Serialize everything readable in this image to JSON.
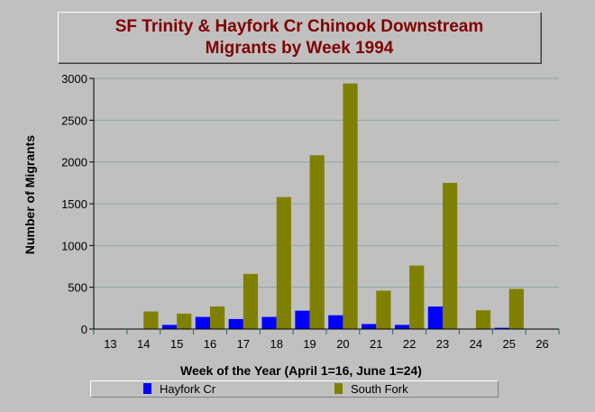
{
  "chart_data": {
    "type": "bar",
    "title": [
      "SF Trinity & Hayfork Cr Chinook Downstream",
      "Migrants by Week 1994"
    ],
    "xlabel": "Week of the Year (April 1=16, June 1=24)",
    "ylabel": "Number of Migrants",
    "categories": [
      "13",
      "14",
      "15",
      "16",
      "17",
      "18",
      "19",
      "20",
      "21",
      "22",
      "23",
      "24",
      "25",
      "26"
    ],
    "ylim": [
      0,
      3000
    ],
    "yticks": [
      "0",
      "500",
      "1000",
      "1500",
      "2000",
      "2500",
      "3000"
    ],
    "grid": true,
    "legend_position": "bottom",
    "series": [
      {
        "name": "Hayfork Cr",
        "color": "#0000ff",
        "values": [
          0,
          0,
          50,
          145,
          120,
          145,
          220,
          165,
          60,
          50,
          270,
          5,
          15,
          0
        ]
      },
      {
        "name": "South Fork",
        "color": "#808000",
        "values": [
          0,
          210,
          185,
          270,
          660,
          1580,
          2080,
          2940,
          460,
          760,
          1750,
          225,
          480,
          0
        ]
      }
    ]
  }
}
